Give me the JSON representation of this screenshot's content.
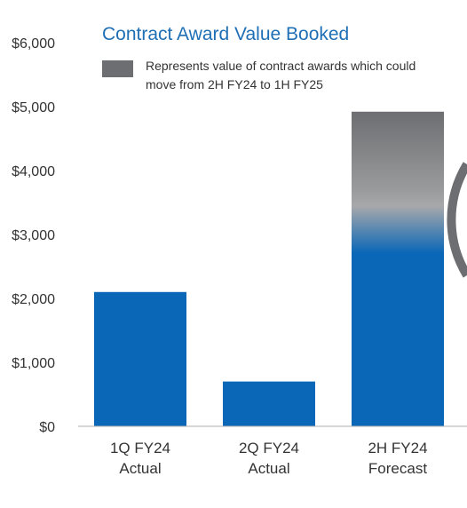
{
  "chart_data": {
    "type": "bar",
    "title": "Contract Award Value Booked",
    "categories": [
      [
        "1Q FY24",
        "Actual"
      ],
      [
        "2Q FY24",
        "Actual"
      ],
      [
        "2H FY24",
        "Forecast"
      ]
    ],
    "values": [
      2100,
      700,
      4920
    ],
    "ylim": [
      0,
      6000
    ],
    "yticks": [
      "$0",
      "$1,000",
      "$2,000",
      "$3,000",
      "$4,000",
      "$5,000",
      "$6,000"
    ],
    "grid": false,
    "legend": {
      "position": "top",
      "entries": [
        {
          "label_lines": [
            "Represents value of contract awards which could",
            "move from 2H FY24 to 1H FY25"
          ],
          "color": "#6d6e71"
        }
      ]
    },
    "bar_color": "#0a67b7",
    "forecast_fade_color": "#6d6e71",
    "title_color": "#1f6fb5",
    "axis_color": "#b0b0b0"
  }
}
